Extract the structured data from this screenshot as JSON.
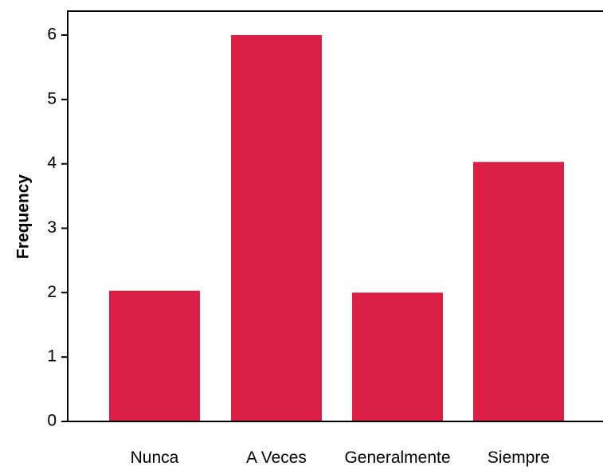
{
  "chart_data": {
    "type": "bar",
    "categories": [
      "Nunca",
      "A Veces",
      "Generalmente",
      "Siempre"
    ],
    "values": [
      2.03,
      6.0,
      2.0,
      4.03
    ],
    "title": "",
    "xlabel": "",
    "ylabel": "Frequency",
    "ylim": [
      0,
      6.3
    ],
    "yticks": [
      0,
      1,
      2,
      3,
      4,
      5,
      6
    ],
    "grid": false,
    "bar_color": "#dc1f45"
  }
}
